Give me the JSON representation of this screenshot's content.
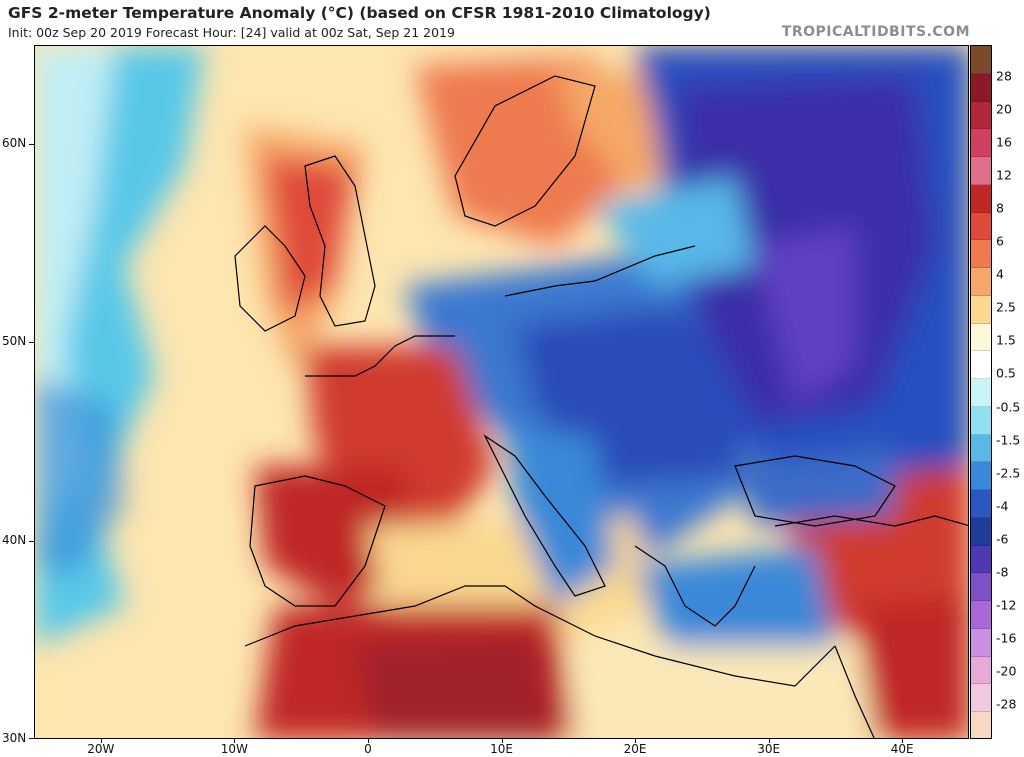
{
  "header": {
    "title": "GFS 2-meter Temperature Anomaly (°C) (based on CFSR 1981-2010 Climatology)",
    "subtitle": "Init: 00z Sep 20 2019   Forecast Hour: [24]   valid at 00z Sat, Sep 21 2019",
    "brand": "TROPICALTIDBITS.COM"
  },
  "map": {
    "lat_ticks": [
      {
        "label": "60N",
        "lat": 60
      },
      {
        "label": "50N",
        "lat": 50
      },
      {
        "label": "40N",
        "lat": 40
      },
      {
        "label": "30N",
        "lat": 30
      }
    ],
    "lon_ticks": [
      {
        "label": "20W",
        "lon": -20
      },
      {
        "label": "10W",
        "lon": -10
      },
      {
        "label": "0",
        "lon": 0
      },
      {
        "label": "10E",
        "lon": 10
      },
      {
        "label": "20E",
        "lon": 20
      },
      {
        "label": "30E",
        "lon": 30
      },
      {
        "label": "40E",
        "lon": 40
      }
    ],
    "extent": {
      "lon_min": -25,
      "lon_max": 45,
      "lat_min": 30,
      "lat_max": 65
    }
  },
  "colorbar": {
    "labels": [
      "28",
      "20",
      "16",
      "12",
      "8",
      "6",
      "4",
      "2.5",
      "1.5",
      "0.5",
      "-0.5",
      "-1.5",
      "-2.5",
      "-4",
      "-6",
      "-8",
      "-12",
      "-16",
      "-20",
      "-28"
    ],
    "colors": [
      "#7a4a2a",
      "#8a1a2a",
      "#b0283a",
      "#d04060",
      "#e0708a",
      "#c02828",
      "#e04a3a",
      "#ee7a50",
      "#f5a868",
      "#fad890",
      "#fff8d8",
      "#ffffff",
      "#c8f4f8",
      "#90e0f0",
      "#58b8e8",
      "#3a88d8",
      "#2a58c0",
      "#1e3c98",
      "#5038b0",
      "#8050c8",
      "#a868d8",
      "#c890e0",
      "#e8a8d8",
      "#f0c8e0",
      "#f8d8c0"
    ],
    "colors_semantic": {
      "warm_extreme": "#7a4a2a",
      "neutral": "#ffffff",
      "cold_extreme": "#f8d8c0"
    }
  }
}
